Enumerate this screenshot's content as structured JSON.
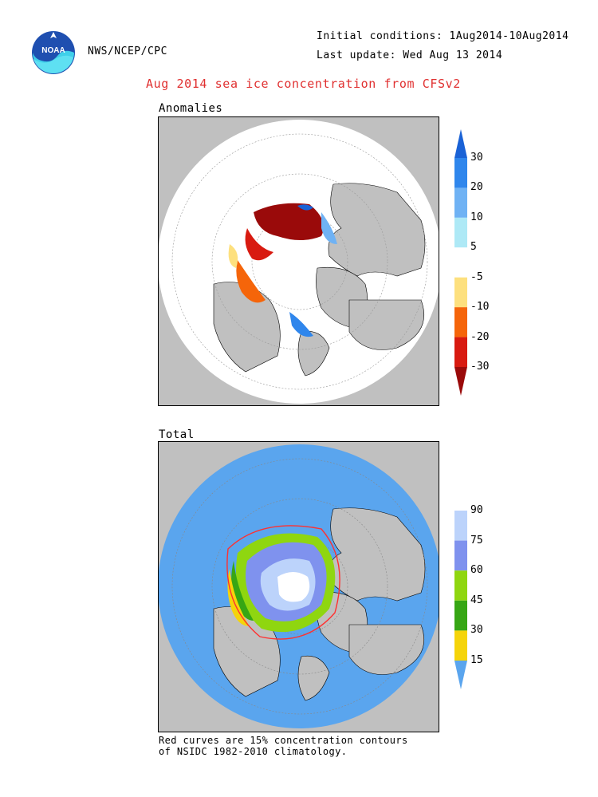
{
  "header": {
    "agency": "NWS/NCEP/CPC",
    "logo_text": "NOAA",
    "initial_conditions": "Initial conditions: 1Aug2014-10Aug2014",
    "last_update": "Last update: Wed Aug 13 2014"
  },
  "title": "Aug 2014 sea ice concentration from CFSv2",
  "panels": {
    "anomalies_label": "Anomalies",
    "total_label": "Total"
  },
  "footnote": {
    "line1": "Red curves are 15% concentration contours",
    "line2": "of NSIDC 1982-2010 climatology."
  },
  "colors": {
    "land": "#c0c0c0",
    "ocean_total": "#5aa5ee",
    "climatology_contour": "#ff3030"
  },
  "chart_data": [
    {
      "type": "heatmap",
      "name": "Anomalies",
      "units": "%",
      "colorbar": {
        "orientation": "vertical",
        "labels": [
          "30",
          "20",
          "10",
          "5",
          "-5",
          "-10",
          "-20",
          "-30"
        ],
        "bins": [
          {
            "range": "> 30",
            "color": "#1a62d6"
          },
          {
            "range": "20 to 30",
            "color": "#2f86ec"
          },
          {
            "range": "10 to 20",
            "color": "#6fb2f4"
          },
          {
            "range": "5 to 10",
            "color": "#aee9f6"
          },
          {
            "range": "-5 to 5",
            "color": "#ffffff"
          },
          {
            "range": "-10 to -5",
            "color": "#fde07e"
          },
          {
            "range": "-20 to -10",
            "color": "#f5650a"
          },
          {
            "range": "-30 to -20",
            "color": "#d81a10"
          },
          {
            "range": "< -30",
            "color": "#9a0a0a"
          }
        ]
      }
    },
    {
      "type": "heatmap",
      "name": "Total",
      "units": "%",
      "colorbar": {
        "orientation": "vertical",
        "labels": [
          "90",
          "75",
          "60",
          "45",
          "30",
          "15"
        ],
        "bins": [
          {
            "range": "> 90",
            "color": "#ffffff"
          },
          {
            "range": "75 to 90",
            "color": "#bcd3fb"
          },
          {
            "range": "60 to 75",
            "color": "#7f92ee"
          },
          {
            "range": "45 to 60",
            "color": "#8fd610"
          },
          {
            "range": "30 to 45",
            "color": "#36a614"
          },
          {
            "range": "15 to 30",
            "color": "#f5d40a"
          },
          {
            "range": "< 15",
            "color": "#5aa5ee"
          }
        ]
      }
    }
  ]
}
